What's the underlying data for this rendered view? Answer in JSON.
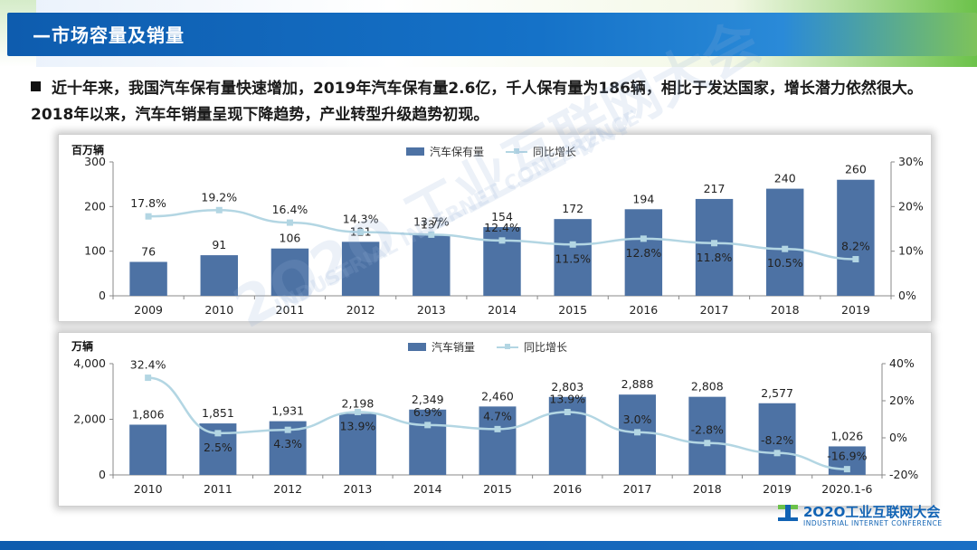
{
  "slide": {
    "title": "—市场容量及销量",
    "bullet": "近十年来，我国汽车保有量快速增加，2019年汽车保有量2.6亿，千人保有量为186辆，相比于发达国家，增长潜力依然很大。2018年以来，汽车年销量呈现下降趋势，产业转型升级趋势初现。"
  },
  "logo": {
    "cn": "2O2O工业互联网大会",
    "en": "INDUSTRIAL INTERNET CONFERENCE"
  },
  "watermark": {
    "line1": "2O2O 工业互联网大会",
    "line2": "INDUSTRIAL INTERNET CONFERENCE"
  },
  "colors": {
    "bar": "#4d72a4",
    "line": "#b3d6e3",
    "title_bar": "#1566bb",
    "accent_green": "#6cc24a"
  },
  "chart_data": [
    {
      "type": "bar",
      "unit_left": "百万辆",
      "legend_bar": "汽车保有量",
      "legend_line": "同比增长",
      "legend_position": "top-center",
      "categories": [
        "2009",
        "2010",
        "2011",
        "2012",
        "2013",
        "2014",
        "2015",
        "2016",
        "2017",
        "2018",
        "2019"
      ],
      "bar_values": [
        76,
        91,
        106,
        121,
        137,
        154,
        172,
        194,
        217,
        240,
        260
      ],
      "line_values": [
        17.8,
        19.2,
        16.4,
        14.3,
        13.7,
        12.4,
        11.5,
        12.8,
        11.8,
        10.5,
        8.2
      ],
      "bar_labels": [
        "76",
        "91",
        "106",
        "121",
        "137",
        "154",
        "172",
        "194",
        "217",
        "240",
        "260"
      ],
      "line_labels": [
        "17.8%",
        "19.2%",
        "16.4%",
        "14.3%",
        "13.7%",
        "12.4%",
        "11.5%",
        "12.8%",
        "11.8%",
        "10.5%",
        "8.2%"
      ],
      "ylim_left": [
        0,
        300
      ],
      "yticks_left": [
        "0",
        "100",
        "200",
        "300"
      ],
      "ylim_right": [
        0,
        30
      ],
      "yticks_right": [
        "0%",
        "10%",
        "20%",
        "30%"
      ],
      "grid": false
    },
    {
      "type": "bar",
      "unit_left": "万辆",
      "legend_bar": "汽车销量",
      "legend_line": "同比增长",
      "legend_position": "top-center",
      "categories": [
        "2010",
        "2011",
        "2012",
        "2013",
        "2014",
        "2015",
        "2016",
        "2017",
        "2018",
        "2019",
        "2020.1-6"
      ],
      "bar_values": [
        1806,
        1851,
        1931,
        2198,
        2349,
        2460,
        2803,
        2888,
        2808,
        2577,
        1026
      ],
      "line_values": [
        32.4,
        2.5,
        4.3,
        13.9,
        6.9,
        4.7,
        13.9,
        3.0,
        -2.8,
        -8.2,
        -16.9
      ],
      "bar_labels": [
        "1,806",
        "1,851",
        "1,931",
        "2,198",
        "2,349",
        "2,460",
        "2,803",
        "2,888",
        "2,808",
        "2,577",
        "1,026"
      ],
      "line_labels": [
        "32.4%",
        "2.5%",
        "4.3%",
        "13.9%",
        "6.9%",
        "4.7%",
        "13.9%",
        "3.0%",
        "-2.8%",
        "-8.2%",
        "-16.9%"
      ],
      "ylim_left": [
        0,
        4000
      ],
      "yticks_left": [
        "0",
        "2,000",
        "4,000"
      ],
      "ylim_right": [
        -20,
        40
      ],
      "yticks_right": [
        "-20%",
        "0%",
        "20%",
        "40%"
      ],
      "grid": false
    }
  ]
}
